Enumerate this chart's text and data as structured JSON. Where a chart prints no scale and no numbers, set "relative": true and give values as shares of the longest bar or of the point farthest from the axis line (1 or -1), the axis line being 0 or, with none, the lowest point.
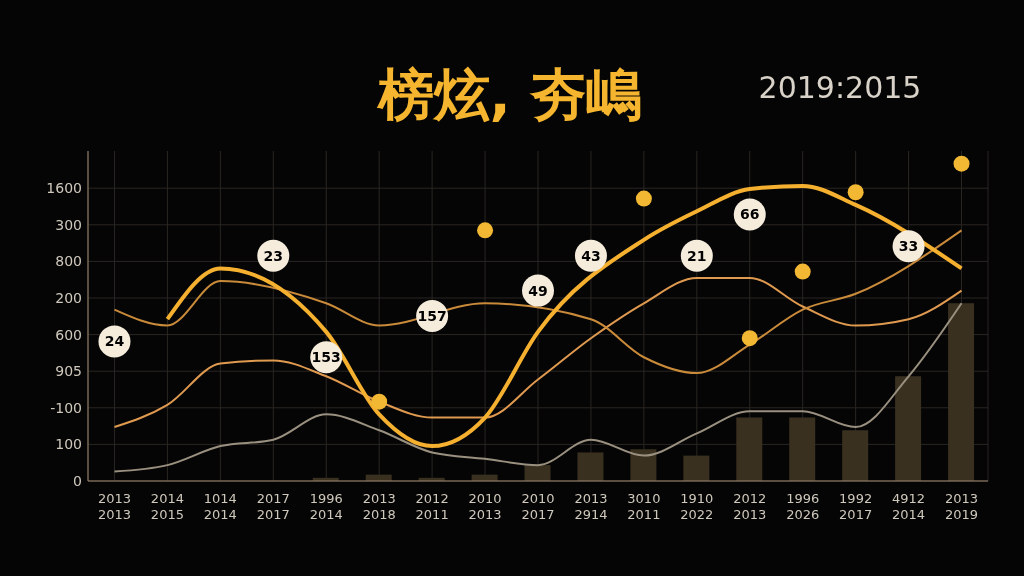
{
  "chart_data": {
    "type": "line",
    "title": "榜炫, 夯嶋",
    "subtitle": "2019:2015",
    "relative": true,
    "categories": [
      "2013\n2013",
      "2014\n2015",
      "1014\n2014",
      "2017\n2017",
      "1996\n2014",
      "2013\n2018",
      "2012\n2011",
      "2010\n2013",
      "2010\n2017",
      "2013\n2914",
      "3010\n2011",
      "1910\n2022",
      "2012\n2013",
      "1996\n2026",
      "1992\n2017",
      "4912\n2014",
      "2013\n2019"
    ],
    "series": [
      {
        "type": "bar",
        "color": "#3a3020",
        "values": [
          0,
          0,
          0,
          0,
          0.01,
          0.02,
          0.01,
          0.02,
          0.05,
          0.09,
          0.1,
          0.08,
          0.2,
          0.2,
          0.16,
          0.33,
          0.56
        ]
      },
      {
        "color": "#9a9080",
        "values": [
          0.03,
          0.05,
          0.11,
          0.13,
          0.21,
          0.16,
          0.09,
          0.07,
          0.05,
          0.13,
          0.08,
          0.15,
          0.22,
          0.22,
          0.17,
          0.33,
          0.56
        ]
      },
      {
        "color": "#e09a50",
        "values": [
          0.17,
          0.24,
          0.37,
          0.38,
          0.33,
          0.25,
          0.2,
          0.2,
          0.32,
          0.45,
          0.56,
          0.64,
          0.64,
          0.55,
          0.49,
          0.51,
          0.6
        ]
      },
      {
        "color": "#c98a3a",
        "values": [
          0.54,
          0.49,
          0.63,
          null,
          0.56,
          0.49,
          null,
          0.56,
          null,
          0.51,
          0.39,
          0.34,
          0.43,
          0.54,
          0.59,
          null,
          0.79
        ]
      },
      {
        "color": "#f5b030",
        "values": [
          null,
          0.51,
          0.67,
          null,
          0.47,
          0.21,
          0.11,
          0.2,
          0.47,
          null,
          0.76,
          0.85,
          0.92,
          0.93,
          0.87,
          null,
          0.67
        ]
      },
      {
        "type": "scatter",
        "color": "#f2b733",
        "values": [
          null,
          null,
          null,
          null,
          null,
          0.25,
          null,
          0.79,
          null,
          null,
          0.89,
          null,
          0.45,
          0.66,
          0.91,
          null,
          1
        ]
      },
      {
        "type": "scatter",
        "color": "#f5ecdc",
        "values": [
          0.44,
          null,
          null,
          0.71,
          0.39,
          null,
          0.52,
          null,
          0.6,
          0.71,
          null,
          0.71,
          0.84,
          null,
          null,
          0.74,
          null
        ]
      }
    ],
    "annotations": [
      "0",
      "100",
      "-100",
      "905",
      "600",
      "200",
      "800",
      "300",
      "1600",
      {
        "text": "24",
        "x": "2013\n2013",
        "y": 0.44
      },
      {
        "text": "23",
        "x": "2017\n2017",
        "y": 0.71
      },
      {
        "text": "153",
        "x": "1996\n2014",
        "y": 0.39
      },
      {
        "text": "157",
        "x": "2012\n2011",
        "y": 0.52
      },
      {
        "text": "49",
        "x": "2010\n2017",
        "y": 0.6
      },
      {
        "text": "43",
        "x": "2013\n2914",
        "y": 0.71
      },
      {
        "text": "21",
        "x": "1910\n2022",
        "y": 0.71
      },
      {
        "text": "66",
        "x": "2012\n2013",
        "y": 0.84
      },
      {
        "text": "33",
        "x": "4912\n2014",
        "y": 0.74
      }
    ],
    "grid": true
  }
}
